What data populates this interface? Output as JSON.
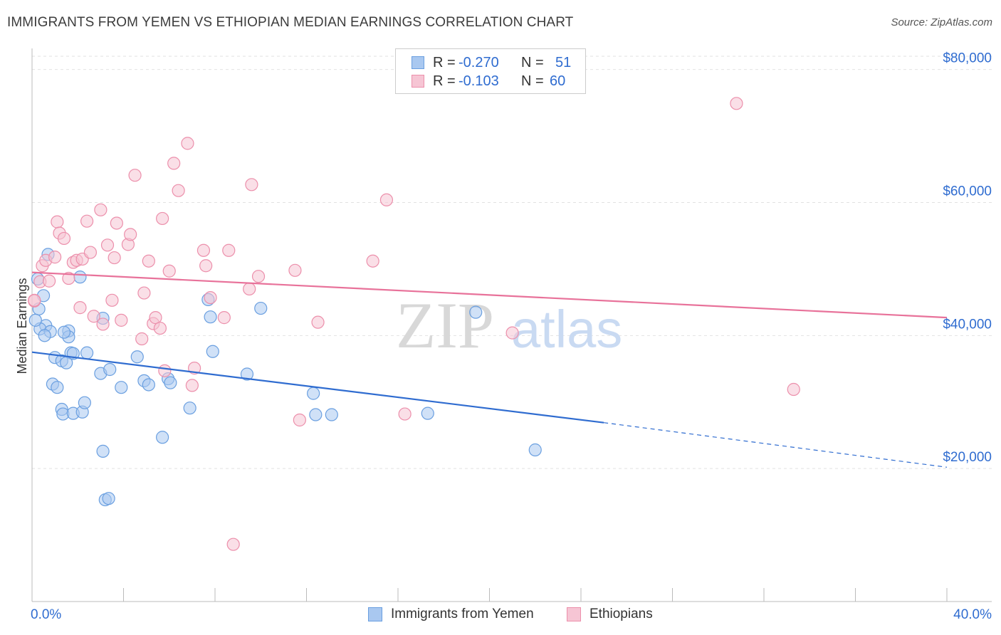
{
  "title": "IMMIGRANTS FROM YEMEN VS ETHIOPIAN MEDIAN EARNINGS CORRELATION CHART",
  "source": "Source: ZipAtlas.com",
  "watermark": {
    "zip": "ZIP",
    "atlas": "atlas"
  },
  "legend": {
    "rows": [
      {
        "r_label": "R =",
        "r_value": "-0.270",
        "n_label": "N =",
        "n_value": "51",
        "color": "#a9c8f0",
        "border": "#6a9fe0"
      },
      {
        "r_label": "R =",
        "r_value": "-0.103",
        "n_label": "N =",
        "n_value": "60",
        "color": "#f6c5d4",
        "border": "#ec8fab"
      }
    ]
  },
  "bottom_legend": [
    {
      "label": "Immigrants from Yemen",
      "color": "#a9c8f0",
      "border": "#6a9fe0"
    },
    {
      "label": "Ethiopians",
      "color": "#f6c5d4",
      "border": "#ec8fab"
    }
  ],
  "chart_data": {
    "type": "scatter",
    "xlabel": "",
    "ylabel": "Median Earnings",
    "xlim": [
      0,
      40
    ],
    "ylim": [
      0,
      82000
    ],
    "x_tick_labels": [
      "0.0%",
      "40.0%"
    ],
    "y_ticks": [
      20000,
      40000,
      60000,
      80000
    ],
    "y_tick_labels": [
      "$20,000",
      "$40,000",
      "$60,000",
      "$80,000"
    ],
    "grid": true,
    "series": [
      {
        "name": "Immigrants from Yemen",
        "color": "#6a9fe0",
        "fill": "#a9c8f0",
        "trend_color": "#2f6cd0",
        "trend": {
          "x0": 0,
          "y0": 37500,
          "x1": 25,
          "y1": 26900,
          "x_dash_end": 40,
          "y_dash_end": 20200
        },
        "points": [
          [
            0.25,
            48500
          ],
          [
            0.5,
            46000
          ],
          [
            0.3,
            44000
          ],
          [
            0.6,
            41500
          ],
          [
            0.35,
            41000
          ],
          [
            0.8,
            40600
          ],
          [
            0.55,
            40000
          ],
          [
            1.6,
            40700
          ],
          [
            1.6,
            39800
          ],
          [
            1.4,
            40500
          ],
          [
            0.7,
            52200
          ],
          [
            2.1,
            48800
          ],
          [
            1.0,
            36700
          ],
          [
            1.3,
            36200
          ],
          [
            1.7,
            37400
          ],
          [
            1.8,
            37300
          ],
          [
            1.5,
            35900
          ],
          [
            3.0,
            34300
          ],
          [
            3.4,
            34900
          ],
          [
            0.9,
            32700
          ],
          [
            1.1,
            32200
          ],
          [
            3.9,
            32200
          ],
          [
            4.6,
            36800
          ],
          [
            4.9,
            33200
          ],
          [
            5.1,
            32600
          ],
          [
            5.95,
            33500
          ],
          [
            6.05,
            32900
          ],
          [
            1.3,
            28900
          ],
          [
            1.35,
            28200
          ],
          [
            1.8,
            28300
          ],
          [
            2.2,
            28500
          ],
          [
            2.3,
            29900
          ],
          [
            3.1,
            42600
          ],
          [
            7.7,
            45400
          ],
          [
            7.8,
            42800
          ],
          [
            7.9,
            37600
          ],
          [
            9.4,
            34200
          ],
          [
            10.0,
            44100
          ],
          [
            6.9,
            29100
          ],
          [
            5.7,
            24700
          ],
          [
            3.1,
            22600
          ],
          [
            3.2,
            15300
          ],
          [
            3.35,
            15500
          ],
          [
            12.3,
            31300
          ],
          [
            12.4,
            28100
          ],
          [
            13.1,
            28100
          ],
          [
            17.3,
            28300
          ],
          [
            19.4,
            43500
          ],
          [
            22.0,
            22800
          ],
          [
            2.4,
            37400
          ],
          [
            0.15,
            42300
          ]
        ]
      },
      {
        "name": "Ethiopians",
        "color": "#ec8fab",
        "fill": "#f6c5d4",
        "trend_color": "#e8729a",
        "trend": {
          "x0": 0,
          "y0": 49500,
          "x1": 40,
          "y1": 42700
        },
        "points": [
          [
            0.1,
            45200
          ],
          [
            0.35,
            48100
          ],
          [
            0.45,
            50500
          ],
          [
            0.6,
            51300
          ],
          [
            0.75,
            48200
          ],
          [
            1.0,
            51800
          ],
          [
            1.1,
            57100
          ],
          [
            1.2,
            55400
          ],
          [
            1.4,
            54600
          ],
          [
            1.6,
            48600
          ],
          [
            1.8,
            51000
          ],
          [
            1.95,
            51300
          ],
          [
            2.2,
            51500
          ],
          [
            2.4,
            57200
          ],
          [
            2.55,
            52500
          ],
          [
            2.1,
            44200
          ],
          [
            2.7,
            42900
          ],
          [
            3.0,
            58900
          ],
          [
            3.1,
            41700
          ],
          [
            3.3,
            53600
          ],
          [
            3.5,
            45300
          ],
          [
            3.6,
            51700
          ],
          [
            3.7,
            56900
          ],
          [
            3.9,
            42300
          ],
          [
            4.2,
            53700
          ],
          [
            4.3,
            55200
          ],
          [
            4.5,
            64100
          ],
          [
            4.8,
            39500
          ],
          [
            4.9,
            46400
          ],
          [
            5.1,
            51200
          ],
          [
            5.3,
            41800
          ],
          [
            5.4,
            42700
          ],
          [
            5.6,
            41100
          ],
          [
            5.7,
            57600
          ],
          [
            5.8,
            34700
          ],
          [
            6.0,
            49700
          ],
          [
            6.2,
            65900
          ],
          [
            6.4,
            61800
          ],
          [
            6.8,
            68900
          ],
          [
            7.0,
            32500
          ],
          [
            7.1,
            35100
          ],
          [
            7.5,
            52800
          ],
          [
            7.6,
            50500
          ],
          [
            7.8,
            45700
          ],
          [
            8.4,
            42700
          ],
          [
            8.6,
            52800
          ],
          [
            9.5,
            47000
          ],
          [
            9.6,
            62700
          ],
          [
            9.9,
            48900
          ],
          [
            11.5,
            49800
          ],
          [
            11.7,
            27300
          ],
          [
            12.5,
            42000
          ],
          [
            14.9,
            51200
          ],
          [
            15.5,
            60400
          ],
          [
            16.3,
            28200
          ],
          [
            21.0,
            40400
          ],
          [
            30.8,
            74900
          ],
          [
            33.3,
            31900
          ],
          [
            8.8,
            8600
          ],
          [
            0.1,
            45300
          ]
        ]
      }
    ]
  }
}
